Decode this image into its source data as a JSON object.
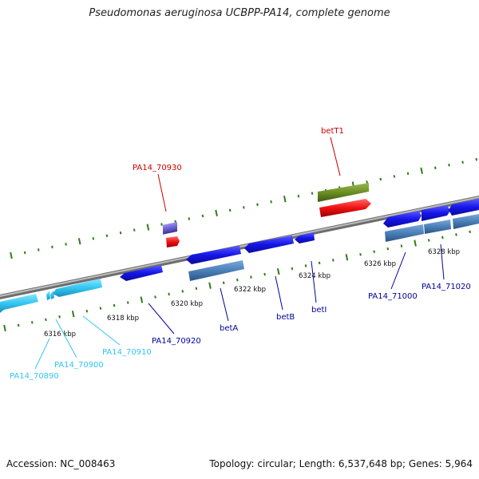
{
  "title": "Pseudomonas aeruginosa UCBPP-PA14, complete genome",
  "footer": {
    "accession": "Accession: NC_008463",
    "topology": "Topology: circular; Length: 6,537,648 bp; Genes: 5,964"
  },
  "colors": {
    "backbone": "#8a8a8a",
    "tick": "#2e7d1a",
    "cds": "#1515e8",
    "cds_secondary": "#4a7fb8",
    "light_gene": "#33c6f2",
    "rna_gene": "#ee1111",
    "ncrna_gene": "#6b8f22",
    "purple_gene": "#6a5fcf",
    "label_dark": "#00009a",
    "label_light": "#33c6f2",
    "label_red": "#cc0000"
  },
  "ticks": [
    {
      "label": "6316 kbp"
    },
    {
      "label": "6318 kbp"
    },
    {
      "label": "6320 kbp"
    },
    {
      "label": "6322 kbp"
    },
    {
      "label": "6324 kbp"
    },
    {
      "label": "6326 kbp"
    },
    {
      "label": "6328 kbp"
    }
  ],
  "gene_labels": [
    {
      "name": "PA14_70890",
      "color": "light"
    },
    {
      "name": "PA14_70900",
      "color": "light"
    },
    {
      "name": "PA14_70910",
      "color": "light"
    },
    {
      "name": "PA14_70920",
      "color": "dark"
    },
    {
      "name": "betA",
      "color": "dark"
    },
    {
      "name": "betB",
      "color": "dark"
    },
    {
      "name": "betI",
      "color": "dark"
    },
    {
      "name": "PA14_71000",
      "color": "dark"
    },
    {
      "name": "PA14_71020",
      "color": "dark"
    },
    {
      "name": "PA14_70930",
      "color": "red"
    },
    {
      "name": "betT1",
      "color": "red"
    }
  ]
}
